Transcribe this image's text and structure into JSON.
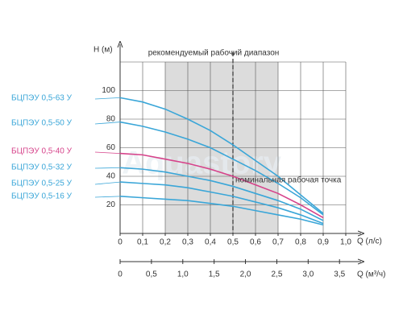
{
  "chart_data": {
    "type": "line",
    "y_label": "H (м)",
    "x_label": "Q (л/с)",
    "x2_label": "Q (м³/ч)",
    "annotation_range": "рекомендуемый рабочий диапазон",
    "annotation_point": "номинальная рабочая точка",
    "watermark": "Aquastory",
    "range": [
      0.2,
      0.7
    ],
    "range_color": "#dcdcdc",
    "nominal_x": 0.5,
    "x": [
      0,
      0.1,
      0.2,
      0.3,
      0.4,
      0.5,
      0.6,
      0.7,
      0.8,
      0.9
    ],
    "series": [
      {
        "name": "БЦПЭУ 0,5-63 У",
        "color": "#3aa6d8",
        "values": [
          95,
          92,
          87,
          80,
          72,
          62,
          51,
          40,
          27,
          14
        ]
      },
      {
        "name": "БЦПЭУ 0,5-50 У",
        "color": "#3aa6d8",
        "values": [
          78,
          75,
          71,
          66,
          60,
          52,
          44,
          35,
          25,
          13
        ]
      },
      {
        "name": "БЦПЭУ 0,5-40 У",
        "color": "#d6428a",
        "values": [
          56,
          55,
          52,
          49,
          45,
          40,
          34,
          28,
          20,
          11
        ]
      },
      {
        "name": "БЦПЭУ 0,5-32 У",
        "color": "#3aa6d8",
        "values": [
          46,
          45,
          43,
          40,
          37,
          33,
          28,
          23,
          17,
          9
        ]
      },
      {
        "name": "БЦПЭУ 0,5-25 У",
        "color": "#3aa6d8",
        "values": [
          36,
          35,
          34,
          32,
          29,
          26,
          22,
          18,
          13,
          7
        ]
      },
      {
        "name": "БЦПЭУ 0,5-16 У",
        "color": "#3aa6d8",
        "values": [
          26,
          25,
          24,
          23,
          21,
          19,
          16,
          13,
          10,
          6
        ]
      }
    ],
    "xlim": [
      0,
      1.0
    ],
    "xticks": [
      0,
      {
        "value": 0.1,
        "label": "0,1"
      },
      {
        "value": 0.2,
        "label": "0,2"
      },
      {
        "value": 0.3,
        "label": "0,3"
      },
      {
        "value": 0.4,
        "label": "0,4"
      },
      {
        "value": 0.5,
        "label": "0,5"
      },
      {
        "value": 0.6,
        "label": "0,6"
      },
      {
        "value": 0.7,
        "label": "0,7"
      },
      {
        "value": 0.8,
        "label": "0,8"
      },
      {
        "value": 0.9,
        "label": "0,9"
      },
      {
        "value": 1.0,
        "label": "1,0"
      }
    ],
    "x2lim": [
      0,
      3.6
    ],
    "x2ticks": [
      0,
      {
        "value": 0.5,
        "label": "0,5"
      },
      {
        "value": 1.0,
        "label": "1,0"
      },
      {
        "value": 1.5,
        "label": "1,5"
      },
      {
        "value": 2.0,
        "label": "2,0"
      },
      {
        "value": 2.5,
        "label": "2,5"
      },
      {
        "value": 3.0,
        "label": "3,0"
      },
      {
        "value": 3.5,
        "label": "3,5"
      }
    ],
    "ylim": [
      0,
      120
    ],
    "yticks": [
      20,
      40,
      60,
      80,
      100
    ],
    "grid": true
  }
}
